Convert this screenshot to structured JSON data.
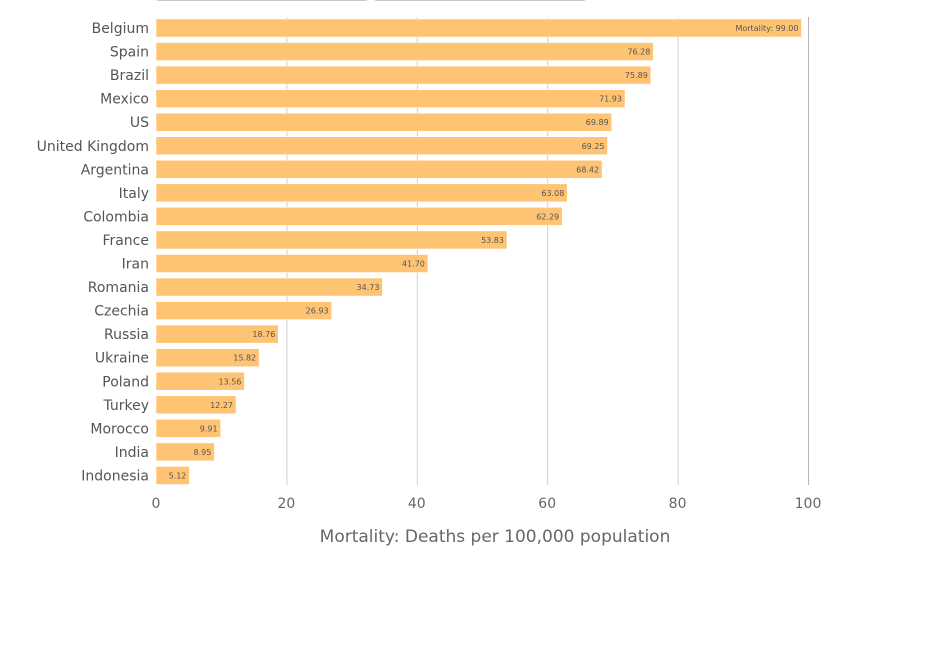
{
  "chart_data": {
    "type": "bar",
    "orientation": "horizontal",
    "title": "",
    "xlabel": "Mortality: Deaths per 100,000 population",
    "ylabel": "",
    "xlim": [
      0,
      100
    ],
    "xticks": [
      0,
      20,
      40,
      60,
      80,
      100
    ],
    "xtick_labels": [
      "0",
      "20",
      "40",
      "60",
      "80",
      "100"
    ],
    "grid": true,
    "bar_color": "#ffc374",
    "categories": [
      "Belgium",
      "Spain",
      "Brazil",
      "Mexico",
      "US",
      "United Kingdom",
      "Argentina",
      "Italy",
      "Colombia",
      "France",
      "Iran",
      "Romania",
      "Czechia",
      "Russia",
      "Ukraine",
      "Poland",
      "Turkey",
      "Morocco",
      "India",
      "Indonesia"
    ],
    "values": [
      99.0,
      76.28,
      75.89,
      71.93,
      69.89,
      69.25,
      68.42,
      63.08,
      62.29,
      53.83,
      41.7,
      34.73,
      26.93,
      18.76,
      15.82,
      13.56,
      12.27,
      9.91,
      8.95,
      5.12
    ],
    "value_labels": [
      "Mortality: 99.00",
      "76.28",
      "75.89",
      "71.93",
      "69.89",
      "69.25",
      "68.42",
      "63.08",
      "62.29",
      "53.83",
      "41.70",
      "34.73",
      "26.93",
      "18.76",
      "15.82",
      "13.56",
      "12.27",
      "9.91",
      "8.95",
      "5.12"
    ]
  }
}
